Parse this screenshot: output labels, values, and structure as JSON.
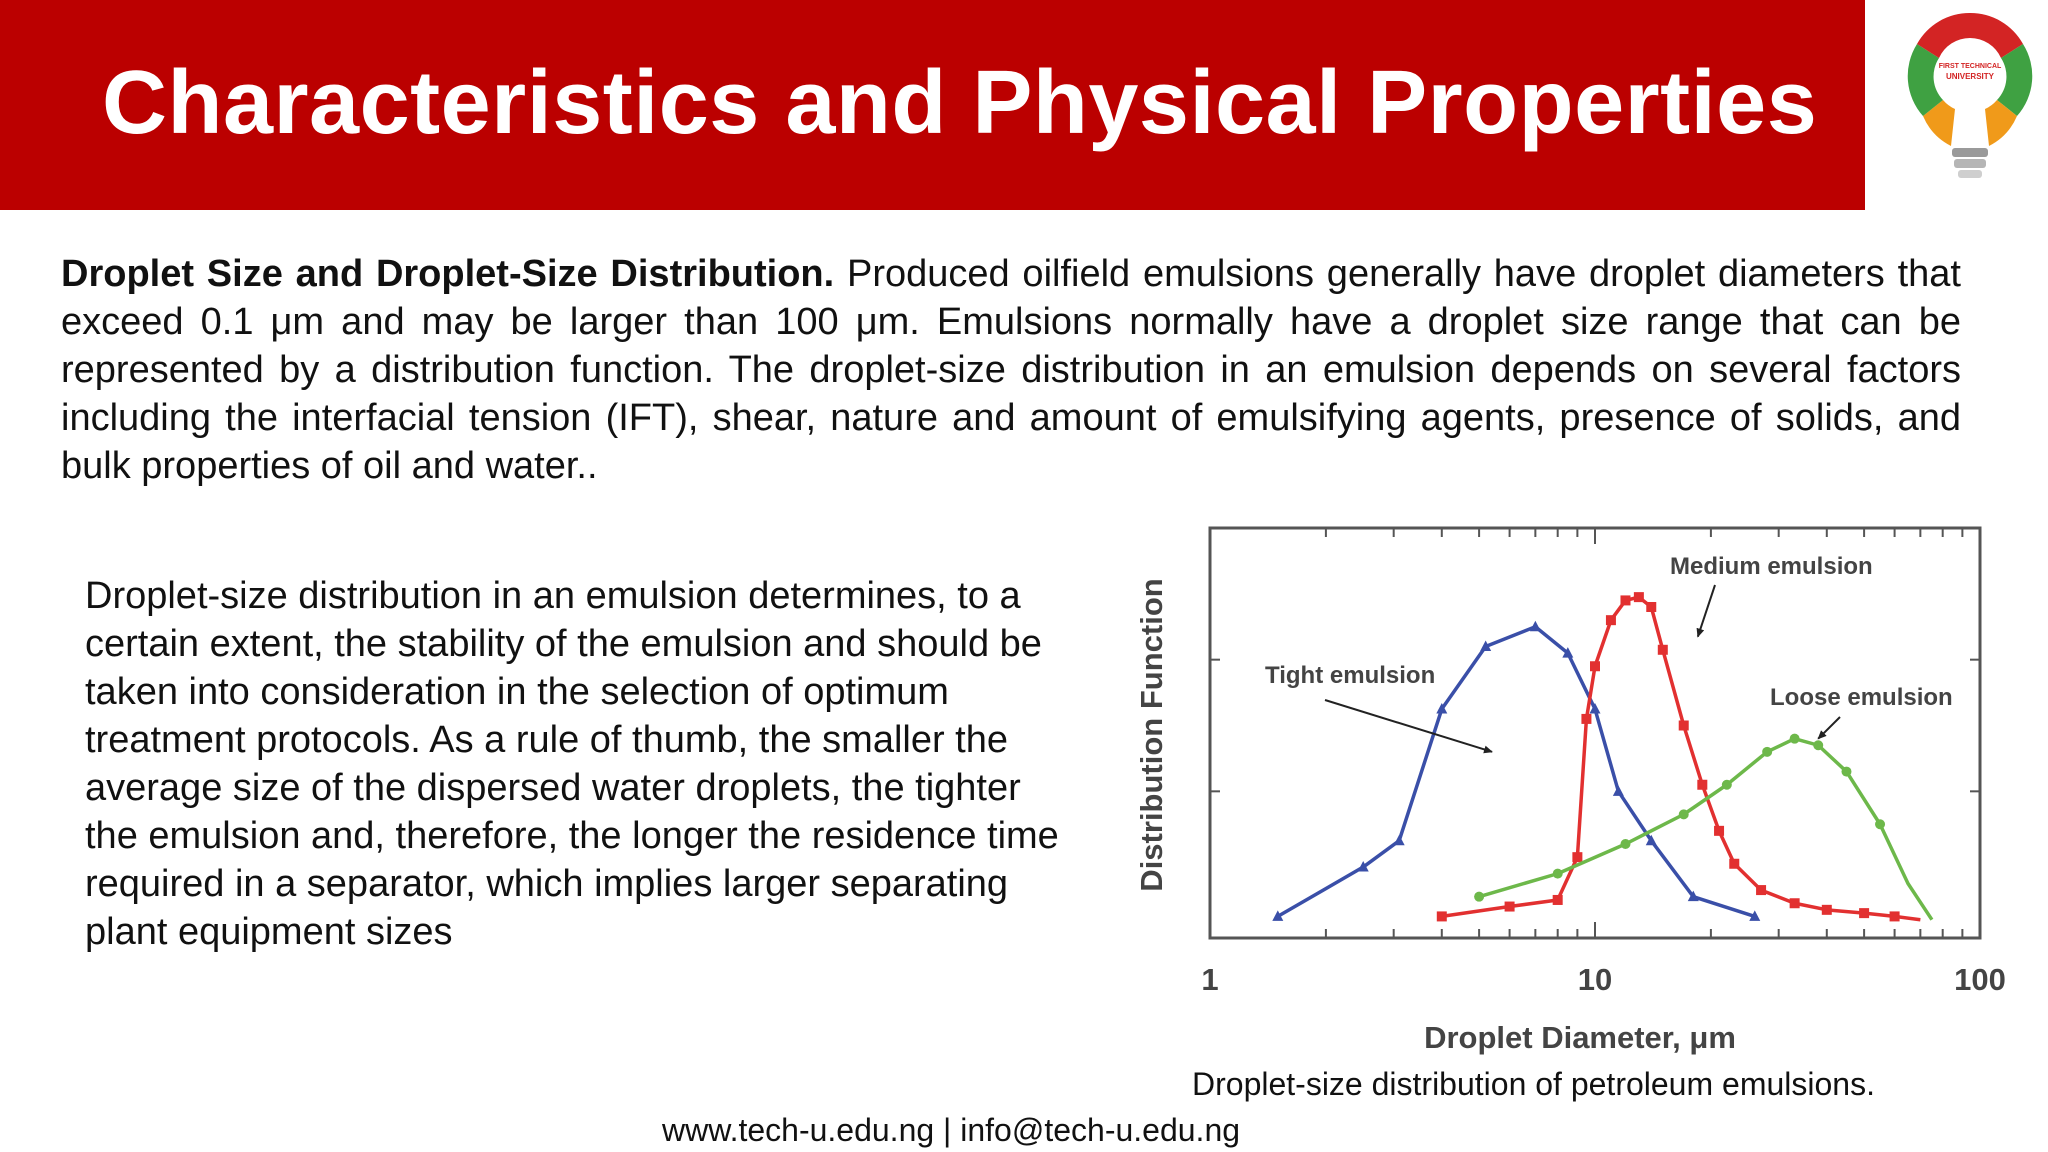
{
  "slide": {
    "title": "Characteristics and Physical Properties",
    "logo_text_line1": "FIRST TECHNICAL",
    "logo_text_line2": "UNIVERSITY",
    "paragraph1_lead": "Droplet Size and Droplet-Size Distribution.",
    "paragraph1_body": " Produced oilfield emulsions generally have droplet diameters that exceed 0.1 μm and may be larger than 100 μm. Emulsions normally have a droplet size range that can be represented by a distribution function. The droplet-size distribution in an emulsion depends on several factors including the interfacial tension (IFT), shear, nature and amount of emulsifying agents, presence of solids, and bulk properties of oil and water..",
    "paragraph2": "Droplet-size distribution in an emulsion determines, to a certain extent, the stability of the emulsion and should be taken into consideration in the selection of optimum treatment protocols. As a rule of thumb, the smaller the average size of the dispersed water droplets, the tighter the emulsion and, therefore, the longer the residence time required in a separator, which implies larger separating plant equipment sizes",
    "caption": "Droplet-size distribution of petroleum emulsions.",
    "footer": "www.tech-u.edu.ng | info@tech-u.edu.ng"
  },
  "colors": {
    "title_bar": "#bb0000",
    "tight": "#3a4fa8",
    "medium": "#e23030",
    "loose": "#6db84a"
  },
  "chart_data": {
    "type": "line",
    "xlabel": "Droplet Diameter, μm",
    "ylabel": "Distribution Function",
    "x_scale": "log",
    "xlim": [
      1,
      100
    ],
    "ylim": [
      0,
      1.2
    ],
    "x_ticks": [
      "1",
      "10",
      "100"
    ],
    "grid": false,
    "series": [
      {
        "name": "Tight emulsion",
        "color": "#3a4fa8",
        "marker": "triangle",
        "x": [
          1.5,
          2.5,
          3.1,
          4.0,
          5.2,
          7.0,
          8.5,
          10.0,
          11.5,
          14.0,
          18.0,
          26.0
        ],
        "y": [
          0.02,
          0.17,
          0.25,
          0.65,
          0.84,
          0.9,
          0.82,
          0.65,
          0.4,
          0.25,
          0.08,
          0.02
        ]
      },
      {
        "name": "Medium emulsion",
        "color": "#e23030",
        "marker": "square",
        "x": [
          4.0,
          6.0,
          8.0,
          9.0,
          9.5,
          10.0,
          11.0,
          12.0,
          13.0,
          14.0,
          15.0,
          17.0,
          19.0,
          21.0,
          23.0,
          27.0,
          33.0,
          40.0,
          50.0,
          60.0,
          70.0
        ],
        "y": [
          0.02,
          0.05,
          0.07,
          0.2,
          0.62,
          0.78,
          0.92,
          0.98,
          0.99,
          0.96,
          0.83,
          0.6,
          0.42,
          0.28,
          0.18,
          0.1,
          0.06,
          0.04,
          0.03,
          0.02,
          0.01
        ],
        "marker_x": [
          4.0,
          6.0,
          8.0,
          9.0,
          9.5,
          10.0,
          11.0,
          12.0,
          13.0,
          14.0,
          15.0,
          17.0,
          19.0,
          21.0,
          23.0,
          27.0,
          33.0,
          40.0,
          50.0,
          60.0
        ]
      },
      {
        "name": "Loose emulsion",
        "color": "#6db84a",
        "marker": "circle",
        "x": [
          5.0,
          8.0,
          12.0,
          17.0,
          22.0,
          28.0,
          33.0,
          38.0,
          45.0,
          55.0,
          65.0,
          75.0
        ],
        "y": [
          0.08,
          0.15,
          0.24,
          0.33,
          0.42,
          0.52,
          0.56,
          0.54,
          0.46,
          0.3,
          0.12,
          0.01
        ],
        "marker_x": [
          5.0,
          8.0,
          12.0,
          17.0,
          22.0,
          28.0,
          33.0,
          38.0,
          45.0,
          55.0
        ]
      }
    ],
    "annotations": [
      {
        "text": "Tight emulsion",
        "series": 0,
        "at_x": 5.4,
        "at_y": 0.52
      },
      {
        "text": "Medium emulsion",
        "series": 1,
        "at_x": 18.5,
        "at_y": 0.87
      },
      {
        "text": "Loose emulsion",
        "series": 2,
        "at_x": 38.0,
        "at_y": 0.56
      }
    ]
  }
}
